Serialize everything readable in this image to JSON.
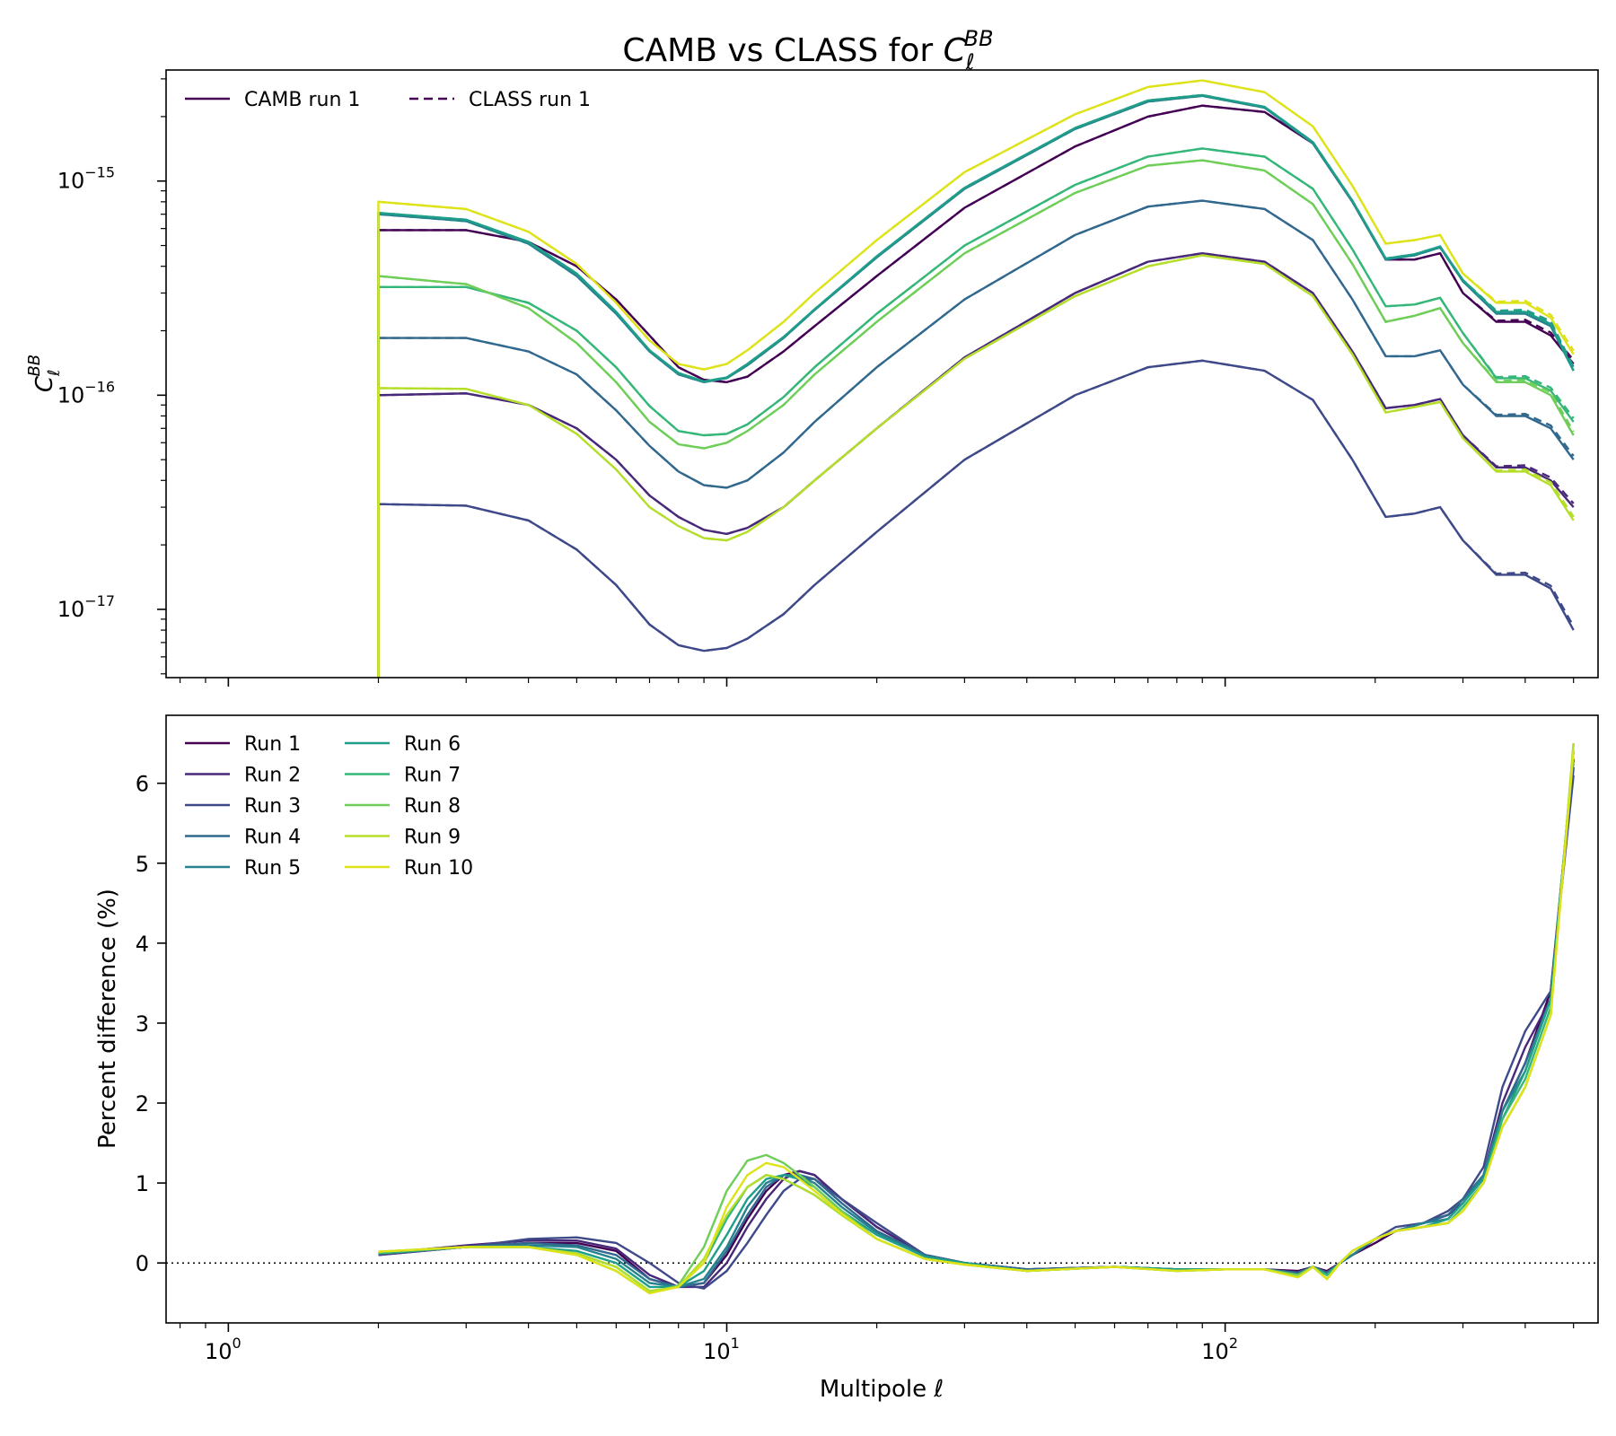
{
  "figure": {
    "title": "CAMB vs CLASS for ",
    "title_math": "C",
    "title_sub": "ℓ",
    "title_sup": "BB"
  },
  "chart_data": [
    {
      "type": "line",
      "panel": "top",
      "xscale": "log",
      "yscale": "log",
      "xlim": [
        0.75,
        560
      ],
      "ylim": [
        4.8e-18,
        3.3e-15
      ],
      "ylabel": "C",
      "ylabel_sub": "ℓ",
      "ylabel_sup": "BB",
      "x_ticks": [
        1,
        10,
        100
      ],
      "x_tick_labels": [
        "",
        "",
        ""
      ],
      "y_ticks": [
        1e-17,
        1e-16,
        1e-15
      ],
      "y_tick_base": "10",
      "y_tick_exponents": [
        "−17",
        "−16",
        "−15"
      ],
      "legend": {
        "position": "top-left",
        "entries": [
          {
            "label": "CAMB run 1",
            "style": "solid",
            "color": "#440154"
          },
          {
            "label": "CLASS run 1",
            "style": "dashed",
            "color": "#440154"
          }
        ]
      },
      "x": [
        2,
        3,
        4,
        5,
        6,
        7,
        8,
        9,
        10,
        11,
        13,
        15,
        20,
        30,
        50,
        70,
        90,
        120,
        150,
        180,
        210,
        240,
        270,
        300,
        350,
        400,
        450,
        500
      ],
      "series": [
        {
          "run": 1,
          "color": "#440154",
          "values": [
            5.9e-16,
            5.9e-16,
            5.2e-16,
            4e-16,
            2.8e-16,
            1.9e-16,
            1.35e-16,
            1.18e-16,
            1.15e-16,
            1.22e-16,
            1.6e-16,
            2.1e-16,
            3.6e-16,
            7.5e-16,
            1.45e-15,
            2e-15,
            2.25e-15,
            2.1e-15,
            1.5e-15,
            8e-16,
            4.3e-16,
            4.3e-16,
            4.6e-16,
            3e-16,
            2.2e-16,
            2.2e-16,
            1.9e-16,
            1.4e-16
          ]
        },
        {
          "run": 2,
          "color": "#482878",
          "values": [
            1e-16,
            1.02e-16,
            9e-17,
            7e-17,
            5e-17,
            3.4e-17,
            2.7e-17,
            2.35e-17,
            2.25e-17,
            2.4e-17,
            3e-17,
            4e-17,
            7e-17,
            1.5e-16,
            3e-16,
            4.2e-16,
            4.6e-16,
            4.2e-16,
            3e-16,
            1.6e-16,
            8.7e-17,
            9e-17,
            9.6e-17,
            6.5e-17,
            4.6e-17,
            4.6e-17,
            4e-17,
            3e-17
          ]
        },
        {
          "run": 3,
          "color": "#3e4989",
          "values": [
            3.1e-17,
            3.05e-17,
            2.6e-17,
            1.9e-17,
            1.3e-17,
            8.5e-18,
            6.8e-18,
            6.4e-18,
            6.6e-18,
            7.3e-18,
            9.5e-18,
            1.3e-17,
            2.3e-17,
            5e-17,
            1e-16,
            1.35e-16,
            1.45e-16,
            1.3e-16,
            9.5e-17,
            5e-17,
            2.7e-17,
            2.8e-17,
            3e-17,
            2.1e-17,
            1.45e-17,
            1.45e-17,
            1.25e-17,
            8e-18
          ]
        },
        {
          "run": 4,
          "color": "#31688e",
          "values": [
            1.85e-16,
            1.85e-16,
            1.6e-16,
            1.25e-16,
            8.5e-17,
            5.8e-17,
            4.4e-17,
            3.8e-17,
            3.7e-17,
            4e-17,
            5.4e-17,
            7.5e-17,
            1.35e-16,
            2.8e-16,
            5.6e-16,
            7.6e-16,
            8.1e-16,
            7.4e-16,
            5.3e-16,
            2.8e-16,
            1.52e-16,
            1.52e-16,
            1.62e-16,
            1.12e-16,
            8e-17,
            8e-17,
            7e-17,
            5e-17
          ]
        },
        {
          "run": 5,
          "color": "#26828e",
          "values": [
            7e-16,
            6.5e-16,
            5.1e-16,
            3.6e-16,
            2.4e-16,
            1.6e-16,
            1.25e-16,
            1.15e-16,
            1.2e-16,
            1.38e-16,
            1.85e-16,
            2.5e-16,
            4.4e-16,
            9.2e-16,
            1.75e-15,
            2.35e-15,
            2.5e-15,
            2.2e-15,
            1.5e-15,
            8e-16,
            4.3e-16,
            4.5e-16,
            4.9e-16,
            3.4e-16,
            2.4e-16,
            2.4e-16,
            2.1e-16,
            1.3e-16
          ]
        },
        {
          "run": 6,
          "color": "#1f9e89",
          "values": [
            7.1e-16,
            6.6e-16,
            5.2e-16,
            3.7e-16,
            2.45e-16,
            1.62e-16,
            1.27e-16,
            1.16e-16,
            1.21e-16,
            1.4e-16,
            1.87e-16,
            2.52e-16,
            4.45e-16,
            9.3e-16,
            1.77e-15,
            2.38e-15,
            2.52e-15,
            2.22e-15,
            1.52e-15,
            8.1e-16,
            4.35e-16,
            4.55e-16,
            4.95e-16,
            3.45e-16,
            2.45e-16,
            2.45e-16,
            2.15e-16,
            1.3e-16
          ]
        },
        {
          "run": 7,
          "color": "#35b779",
          "values": [
            3.2e-16,
            3.2e-16,
            2.7e-16,
            2e-16,
            1.35e-16,
            8.9e-17,
            6.8e-17,
            6.5e-17,
            6.6e-17,
            7.3e-17,
            9.8e-17,
            1.35e-16,
            2.4e-16,
            5e-16,
            9.6e-16,
            1.3e-15,
            1.42e-15,
            1.3e-15,
            9.2e-16,
            4.8e-16,
            2.6e-16,
            2.65e-16,
            2.85e-16,
            1.95e-16,
            1.2e-16,
            1.2e-16,
            1.05e-16,
            7.5e-17
          ]
        },
        {
          "run": 8,
          "color": "#6ece58",
          "values": [
            3.6e-16,
            3.3e-16,
            2.55e-16,
            1.75e-16,
            1.15e-16,
            7.5e-17,
            5.9e-17,
            5.65e-17,
            6e-17,
            6.8e-17,
            9e-17,
            1.25e-16,
            2.2e-16,
            4.6e-16,
            8.8e-16,
            1.18e-15,
            1.25e-15,
            1.12e-15,
            7.8e-16,
            4.1e-16,
            2.2e-16,
            2.35e-16,
            2.55e-16,
            1.75e-16,
            1.15e-16,
            1.15e-16,
            1e-16,
            6.5e-17
          ]
        },
        {
          "run": 9,
          "color": "#b5de2b",
          "values": [
            1.08e-16,
            1.07e-16,
            9e-17,
            6.6e-17,
            4.5e-17,
            3e-17,
            2.45e-17,
            2.15e-17,
            2.1e-17,
            2.3e-17,
            3e-17,
            4e-17,
            7e-17,
            1.48e-16,
            2.9e-16,
            4e-16,
            4.5e-16,
            4.1e-16,
            2.9e-16,
            1.55e-16,
            8.3e-17,
            8.8e-17,
            9.3e-17,
            6.3e-17,
            4.4e-17,
            4.4e-17,
            3.8e-17,
            2.6e-17
          ]
        },
        {
          "run": 10,
          "color": "#dde318",
          "values": [
            8e-16,
            7.4e-16,
            5.8e-16,
            4.1e-16,
            2.7e-16,
            1.8e-16,
            1.4e-16,
            1.32e-16,
            1.4e-16,
            1.62e-16,
            2.2e-16,
            3e-16,
            5.3e-16,
            1.1e-15,
            2.05e-15,
            2.75e-15,
            2.95e-15,
            2.6e-15,
            1.8e-15,
            9.5e-16,
            5.1e-16,
            5.3e-16,
            5.6e-16,
            3.7e-16,
            2.7e-16,
            2.7e-16,
            2.3e-16,
            1.55e-16
          ]
        }
      ]
    },
    {
      "type": "line",
      "panel": "bottom",
      "xscale": "log",
      "xlim": [
        0.75,
        560
      ],
      "ylim": [
        -0.75,
        6.85
      ],
      "xlabel": "Multipole ℓ",
      "ylabel": "Percent difference (%)",
      "x_ticks": [
        1,
        10,
        100
      ],
      "x_tick_base": "10",
      "x_tick_exponents": [
        "0",
        "1",
        "2"
      ],
      "y_ticks": [
        0,
        1,
        2,
        3,
        4,
        5,
        6
      ],
      "y_tick_labels": [
        "0",
        "1",
        "2",
        "3",
        "4",
        "5",
        "6"
      ],
      "zero_line": true,
      "legend": {
        "position": "top-left",
        "ncol": 2,
        "entries": [
          {
            "label": "Run 1",
            "color": "#440154"
          },
          {
            "label": "Run 2",
            "color": "#482878"
          },
          {
            "label": "Run 3",
            "color": "#3e4989"
          },
          {
            "label": "Run 4",
            "color": "#31688e"
          },
          {
            "label": "Run 5",
            "color": "#26828e"
          },
          {
            "label": "Run 6",
            "color": "#1f9e89"
          },
          {
            "label": "Run 7",
            "color": "#35b779"
          },
          {
            "label": "Run 8",
            "color": "#6ece58"
          },
          {
            "label": "Run 9",
            "color": "#b5de2b"
          },
          {
            "label": "Run 10",
            "color": "#dde318"
          }
        ]
      },
      "x": [
        2,
        3,
        4,
        5,
        6,
        7,
        8,
        9,
        10,
        11,
        12,
        13,
        14,
        15,
        17,
        20,
        25,
        30,
        40,
        60,
        80,
        100,
        120,
        140,
        150,
        160,
        170,
        180,
        200,
        220,
        250,
        280,
        300,
        330,
        360,
        400,
        450,
        500
      ],
      "series": [
        {
          "name": "Run 1",
          "color": "#440154",
          "values": [
            0.1,
            0.2,
            0.25,
            0.25,
            0.15,
            -0.2,
            -0.3,
            -0.25,
            0.1,
            0.55,
            0.9,
            1.1,
            1.15,
            1.1,
            0.8,
            0.45,
            0.1,
            0.0,
            -0.08,
            -0.05,
            -0.08,
            -0.08,
            -0.08,
            -0.1,
            -0.05,
            -0.1,
            0.0,
            0.1,
            0.25,
            0.4,
            0.5,
            0.6,
            0.75,
            1.1,
            1.9,
            2.5,
            3.4,
            6.3
          ]
        },
        {
          "name": "Run 2",
          "color": "#482878",
          "values": [
            0.12,
            0.22,
            0.28,
            0.28,
            0.18,
            -0.15,
            -0.3,
            -0.3,
            0.0,
            0.45,
            0.8,
            1.05,
            1.15,
            1.1,
            0.8,
            0.45,
            0.1,
            0.0,
            -0.08,
            -0.05,
            -0.08,
            -0.08,
            -0.08,
            -0.12,
            -0.05,
            -0.12,
            0.0,
            0.1,
            0.3,
            0.4,
            0.5,
            0.6,
            0.75,
            1.1,
            2.0,
            2.7,
            3.3,
            6.2
          ]
        },
        {
          "name": "Run 3",
          "color": "#3e4989",
          "values": [
            0.1,
            0.2,
            0.3,
            0.32,
            0.25,
            0.0,
            -0.25,
            -0.32,
            -0.1,
            0.25,
            0.6,
            0.9,
            1.05,
            1.05,
            0.8,
            0.5,
            0.1,
            0.0,
            -0.08,
            -0.05,
            -0.08,
            -0.08,
            -0.08,
            -0.12,
            -0.05,
            -0.12,
            0.0,
            0.1,
            0.3,
            0.45,
            0.5,
            0.65,
            0.8,
            1.2,
            2.2,
            2.9,
            3.4,
            6.1
          ]
        },
        {
          "name": "Run 4",
          "color": "#31688e",
          "values": [
            0.12,
            0.2,
            0.25,
            0.22,
            0.1,
            -0.2,
            -0.3,
            -0.25,
            0.15,
            0.6,
            0.95,
            1.1,
            1.1,
            1.05,
            0.75,
            0.4,
            0.1,
            0.0,
            -0.08,
            -0.05,
            -0.08,
            -0.08,
            -0.08,
            -0.12,
            -0.05,
            -0.12,
            0.0,
            0.1,
            0.3,
            0.4,
            0.5,
            0.6,
            0.8,
            1.1,
            1.9,
            2.5,
            3.3,
            6.3
          ]
        },
        {
          "name": "Run 5",
          "color": "#26828e",
          "values": [
            0.12,
            0.2,
            0.22,
            0.2,
            0.05,
            -0.25,
            -0.3,
            -0.2,
            0.2,
            0.7,
            1.0,
            1.1,
            1.08,
            1.0,
            0.7,
            0.38,
            0.08,
            0.0,
            -0.1,
            -0.05,
            -0.08,
            -0.08,
            -0.08,
            -0.15,
            -0.05,
            -0.15,
            0.0,
            0.1,
            0.3,
            0.4,
            0.5,
            0.55,
            0.75,
            1.1,
            1.9,
            2.4,
            3.3,
            6.4
          ]
        },
        {
          "name": "Run 6",
          "color": "#1f9e89",
          "values": [
            0.12,
            0.2,
            0.2,
            0.15,
            0.0,
            -0.3,
            -0.3,
            -0.1,
            0.35,
            0.8,
            1.05,
            1.1,
            1.05,
            0.95,
            0.65,
            0.35,
            0.08,
            0.0,
            -0.1,
            -0.05,
            -0.08,
            -0.08,
            -0.08,
            -0.15,
            -0.05,
            -0.15,
            0.0,
            0.15,
            0.3,
            0.4,
            0.45,
            0.55,
            0.75,
            1.05,
            1.8,
            2.4,
            3.3,
            6.4
          ]
        },
        {
          "name": "Run 7",
          "color": "#35b779",
          "values": [
            0.12,
            0.2,
            0.2,
            0.12,
            -0.05,
            -0.35,
            -0.3,
            0.0,
            0.55,
            0.95,
            1.1,
            1.05,
            0.95,
            0.85,
            0.6,
            0.3,
            0.05,
            -0.02,
            -0.1,
            -0.05,
            -0.1,
            -0.08,
            -0.08,
            -0.15,
            -0.05,
            -0.15,
            0.0,
            0.15,
            0.3,
            0.4,
            0.45,
            0.5,
            0.7,
            1.0,
            1.8,
            2.3,
            3.2,
            6.4
          ]
        },
        {
          "name": "Run 8",
          "color": "#6ece58",
          "values": [
            0.14,
            0.2,
            0.2,
            0.1,
            -0.1,
            -0.38,
            -0.28,
            0.2,
            0.9,
            1.28,
            1.35,
            1.25,
            1.1,
            0.95,
            0.65,
            0.3,
            0.05,
            -0.02,
            -0.1,
            -0.05,
            -0.1,
            -0.08,
            -0.08,
            -0.15,
            -0.05,
            -0.2,
            0.0,
            0.15,
            0.3,
            0.4,
            0.45,
            0.5,
            0.65,
            1.0,
            1.7,
            2.2,
            3.1,
            6.5
          ]
        },
        {
          "name": "Run 9",
          "color": "#b5de2b",
          "values": [
            0.14,
            0.2,
            0.2,
            0.12,
            -0.05,
            -0.35,
            -0.3,
            0.05,
            0.6,
            0.95,
            1.1,
            1.05,
            0.95,
            0.85,
            0.6,
            0.3,
            0.05,
            -0.02,
            -0.1,
            -0.05,
            -0.1,
            -0.08,
            -0.08,
            -0.18,
            -0.05,
            -0.2,
            0.0,
            0.15,
            0.3,
            0.4,
            0.45,
            0.5,
            0.65,
            1.0,
            1.7,
            2.2,
            3.1,
            6.5
          ]
        },
        {
          "name": "Run 10",
          "color": "#dde318",
          "values": [
            0.14,
            0.2,
            0.2,
            0.1,
            -0.1,
            -0.38,
            -0.3,
            0.0,
            0.7,
            1.1,
            1.25,
            1.2,
            1.05,
            0.9,
            0.62,
            0.3,
            0.05,
            -0.02,
            -0.1,
            -0.05,
            -0.1,
            -0.08,
            -0.08,
            -0.18,
            -0.05,
            -0.2,
            0.0,
            0.15,
            0.3,
            0.4,
            0.45,
            0.5,
            0.65,
            1.0,
            1.7,
            2.2,
            3.1,
            6.4
          ]
        }
      ]
    }
  ]
}
